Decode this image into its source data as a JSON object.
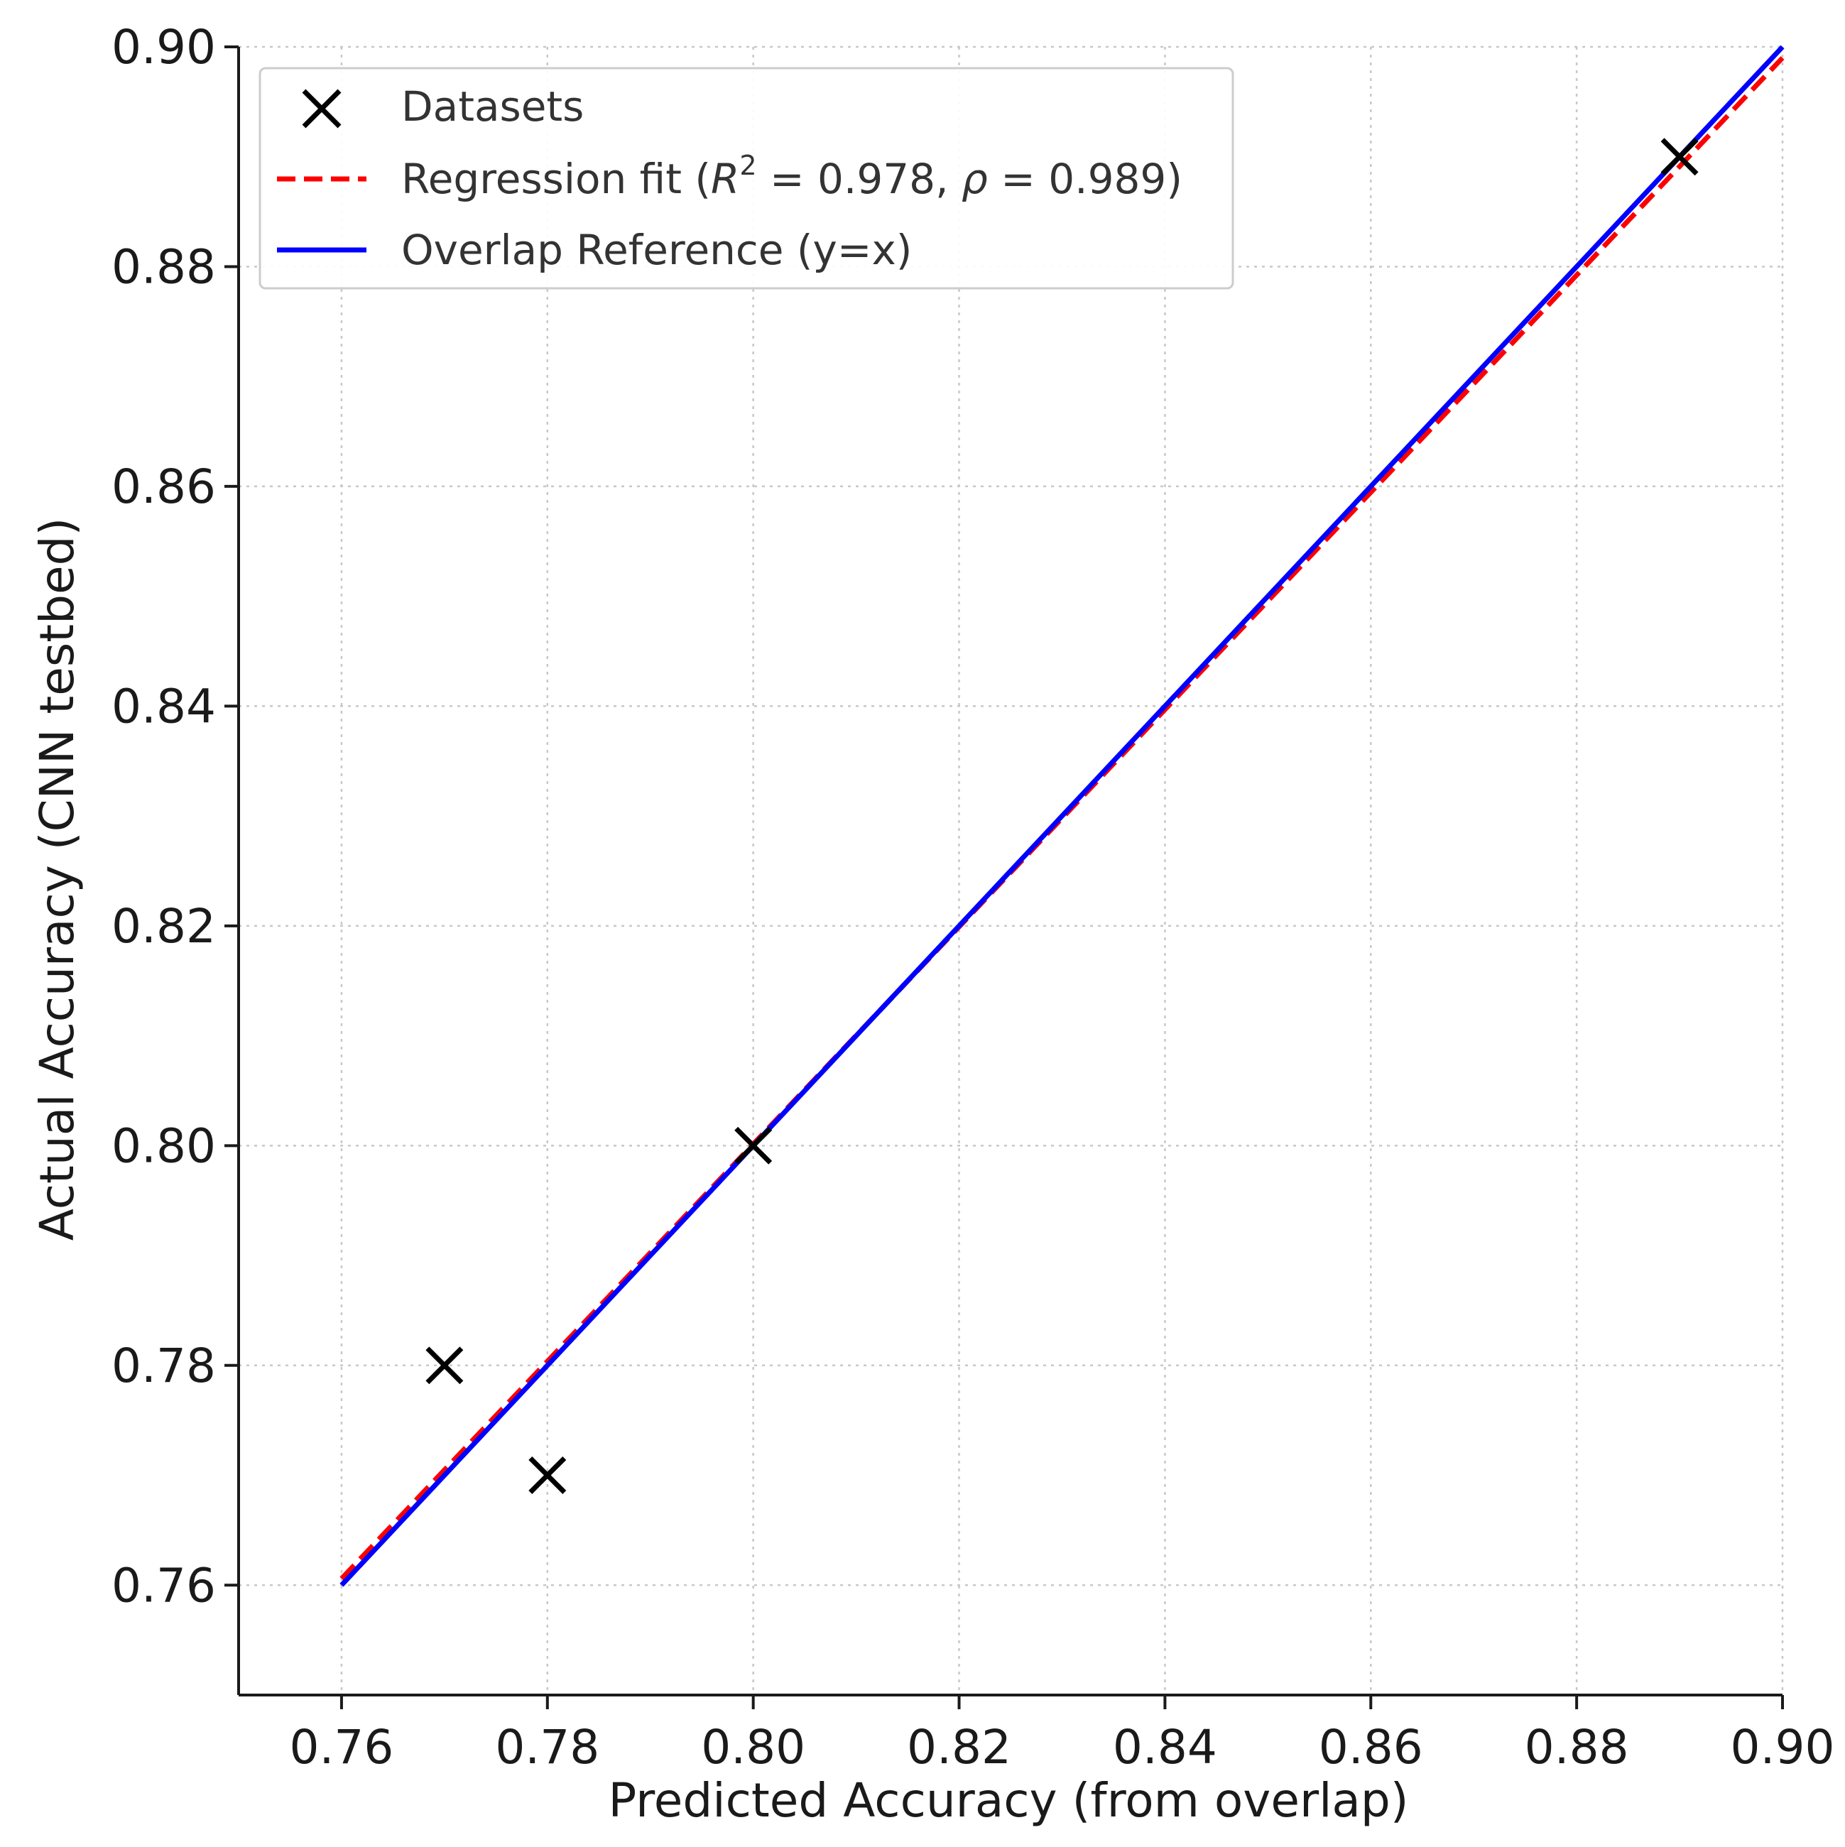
{
  "chart_data": {
    "type": "scatter",
    "xlabel": "Predicted Accuracy (from overlap)",
    "ylabel": "Actual Accuracy (CNN testbed)",
    "xlim": [
      0.75,
      0.9
    ],
    "ylim": [
      0.75,
      0.9
    ],
    "xticks": [
      "0.76",
      "0.78",
      "0.80",
      "0.82",
      "0.84",
      "0.86",
      "0.88",
      "0.90"
    ],
    "yticks": [
      "0.76",
      "0.78",
      "0.80",
      "0.82",
      "0.84",
      "0.86",
      "0.88",
      "0.90"
    ],
    "grid": true,
    "legend_position": "top-left",
    "series": [
      {
        "name": "Datasets",
        "kind": "scatter",
        "marker": "x",
        "color": "#000000",
        "points": [
          {
            "x": 0.77,
            "y": 0.78
          },
          {
            "x": 0.78,
            "y": 0.77
          },
          {
            "x": 0.8,
            "y": 0.8
          },
          {
            "x": 0.89,
            "y": 0.89
          }
        ]
      },
      {
        "name": "Regression fit",
        "kind": "line",
        "style": "dashed",
        "color": "#ff0000",
        "r2": "0.978",
        "rho": "0.989",
        "points": [
          {
            "x": 0.76,
            "y": 0.7606
          },
          {
            "x": 0.9,
            "y": 0.899
          }
        ]
      },
      {
        "name": "Overlap Reference (y=x)",
        "kind": "line",
        "style": "solid",
        "color": "#0000ff",
        "points": [
          {
            "x": 0.76,
            "y": 0.76
          },
          {
            "x": 0.9,
            "y": 0.9
          }
        ]
      }
    ]
  }
}
